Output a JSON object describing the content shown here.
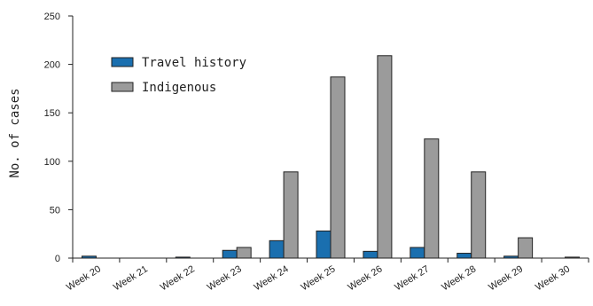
{
  "chart_data": {
    "type": "bar",
    "categories": [
      "Week 20",
      "Week 21",
      "Week 22",
      "Week 23",
      "Week 24",
      "Week 25",
      "Week 26",
      "Week 27",
      "Week 28",
      "Week 29",
      "Week 30"
    ],
    "series": [
      {
        "name": "Travel history",
        "color": "#1a6faf",
        "values": [
          2,
          0,
          1,
          8,
          18,
          28,
          7,
          11,
          5,
          2,
          0
        ]
      },
      {
        "name": "Indigenous",
        "color": "#9b9b9b",
        "values": [
          0,
          0,
          0,
          11,
          89,
          187,
          209,
          123,
          89,
          21,
          1
        ]
      }
    ],
    "xlabel": "",
    "ylabel": "No. of cases",
    "ylim": [
      0,
      250
    ],
    "yticks": [
      0,
      50,
      100,
      150,
      200,
      250
    ],
    "grid": false,
    "legend_position": "top-left"
  }
}
